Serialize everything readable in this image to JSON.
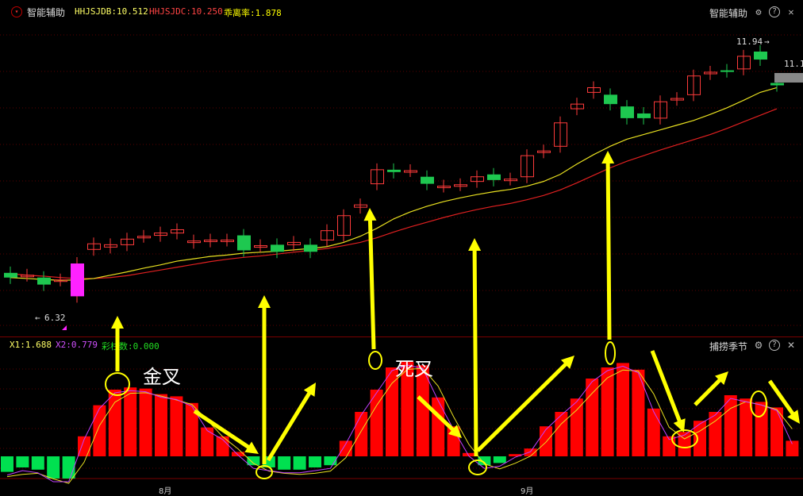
{
  "top_bar": {
    "panel_name": "智能辅助",
    "ind1": "HHJSJDB:10.512",
    "ind2": "HHJSJDC:10.250",
    "ind3": "乖离率:1.878",
    "right_title": "智能辅助",
    "colors": {
      "ind1": "#ffff66",
      "ind2": "#ff4444",
      "ind3": "#ffff00"
    }
  },
  "main_chart": {
    "high_label": "11.94",
    "right_price": "11.1",
    "low_label": "6.32"
  },
  "sub_panel": {
    "x1": "X1:1.688",
    "x2": "X2:0.779",
    "x3": "彩柱数:0.000",
    "title": "捕捞季节"
  },
  "annotations": {
    "golden_cross": "金叉",
    "death_cross": "死叉"
  },
  "x_axis": {
    "aug": "8月",
    "sep": "9月"
  },
  "icons": [
    "gear-icon",
    "help-icon",
    "close-icon"
  ],
  "chart_data": [
    {
      "type": "candlestick",
      "title": "",
      "candles": [
        {
          "o": 7.0,
          "c": 6.9
        },
        {
          "o": 6.95,
          "c": 6.95
        },
        {
          "o": 6.9,
          "c": 6.75
        },
        {
          "o": 6.85,
          "c": 6.85
        },
        {
          "o": 6.5,
          "c": 7.2
        },
        {
          "o": 7.5,
          "c": 7.62
        },
        {
          "o": 7.55,
          "c": 7.6
        },
        {
          "o": 7.6,
          "c": 7.72
        },
        {
          "o": 7.78,
          "c": 7.78
        },
        {
          "o": 7.8,
          "c": 7.85
        },
        {
          "o": 7.85,
          "c": 7.92
        },
        {
          "o": 7.65,
          "c": 7.68
        },
        {
          "o": 7.68,
          "c": 7.7
        },
        {
          "o": 7.7,
          "c": 7.7
        },
        {
          "o": 7.8,
          "c": 7.48
        },
        {
          "o": 7.58,
          "c": 7.58
        },
        {
          "o": 7.6,
          "c": 7.45
        },
        {
          "o": 7.6,
          "c": 7.65
        },
        {
          "o": 7.6,
          "c": 7.45
        },
        {
          "o": 7.7,
          "c": 7.9
        },
        {
          "o": 7.8,
          "c": 8.22
        },
        {
          "o": 8.4,
          "c": 8.45
        },
        {
          "o": 8.9,
          "c": 9.2
        },
        {
          "o": 9.2,
          "c": 9.15
        },
        {
          "o": 9.18,
          "c": 9.18
        },
        {
          "o": 9.05,
          "c": 8.9
        },
        {
          "o": 8.85,
          "c": 8.85
        },
        {
          "o": 8.88,
          "c": 8.88
        },
        {
          "o": 8.95,
          "c": 9.05
        },
        {
          "o": 9.1,
          "c": 8.98
        },
        {
          "o": 9.0,
          "c": 9.0
        },
        {
          "o": 9.05,
          "c": 9.5
        },
        {
          "o": 9.58,
          "c": 9.6
        },
        {
          "o": 9.7,
          "c": 10.2
        },
        {
          "o": 10.5,
          "c": 10.6
        },
        {
          "o": 10.85,
          "c": 10.95
        },
        {
          "o": 10.8,
          "c": 10.6
        },
        {
          "o": 10.55,
          "c": 10.3
        },
        {
          "o": 10.4,
          "c": 10.3
        },
        {
          "o": 10.3,
          "c": 10.65
        },
        {
          "o": 10.7,
          "c": 10.72
        },
        {
          "o": 10.8,
          "c": 11.2
        },
        {
          "o": 11.25,
          "c": 11.28
        },
        {
          "o": 11.32,
          "c": 11.3
        },
        {
          "o": 11.35,
          "c": 11.62
        },
        {
          "o": 11.72,
          "c": 11.55
        },
        {
          "o": 11.05,
          "c": 11.0
        }
      ],
      "ma_yellow": [
        6.9,
        6.88,
        6.86,
        6.84,
        6.85,
        6.88,
        6.95,
        7.02,
        7.1,
        7.17,
        7.25,
        7.3,
        7.35,
        7.38,
        7.42,
        7.44,
        7.46,
        7.49,
        7.52,
        7.56,
        7.65,
        7.78,
        7.95,
        8.15,
        8.3,
        8.42,
        8.52,
        8.6,
        8.67,
        8.73,
        8.78,
        8.85,
        8.95,
        9.1,
        9.32,
        9.52,
        9.7,
        9.85,
        9.95,
        10.05,
        10.15,
        10.25,
        10.38,
        10.52,
        10.68,
        10.85,
        10.95
      ],
      "ma_red": [
        6.98,
        6.95,
        6.93,
        6.9,
        6.88,
        6.88,
        6.9,
        6.94,
        7.0,
        7.06,
        7.12,
        7.18,
        7.24,
        7.29,
        7.33,
        7.36,
        7.4,
        7.44,
        7.48,
        7.52,
        7.58,
        7.65,
        7.75,
        7.87,
        7.98,
        8.08,
        8.18,
        8.27,
        8.35,
        8.42,
        8.48,
        8.56,
        8.65,
        8.77,
        8.92,
        9.08,
        9.24,
        9.38,
        9.5,
        9.62,
        9.73,
        9.84,
        9.95,
        10.08,
        10.22,
        10.36,
        10.5
      ]
    },
    {
      "type": "bar",
      "title": "",
      "values": [
        -0.7,
        -0.5,
        -0.6,
        -1.0,
        -1.0,
        0.9,
        2.3,
        3.0,
        3.1,
        3.05,
        2.8,
        2.7,
        2.4,
        1.3,
        0.9,
        0.2,
        -0.4,
        -0.5,
        -0.6,
        -0.6,
        -0.5,
        -0.4,
        0.7,
        2.0,
        3.0,
        4.0,
        4.25,
        4.1,
        2.65,
        1.35,
        0.15,
        -0.4,
        -0.3,
        0.1,
        0.35,
        1.35,
        2.0,
        2.6,
        3.5,
        4.0,
        4.2,
        3.9,
        2.15,
        0.9,
        1.1,
        1.6,
        2.0,
        2.75,
        2.6,
        2.45,
        2.2,
        0.7
      ]
    }
  ]
}
